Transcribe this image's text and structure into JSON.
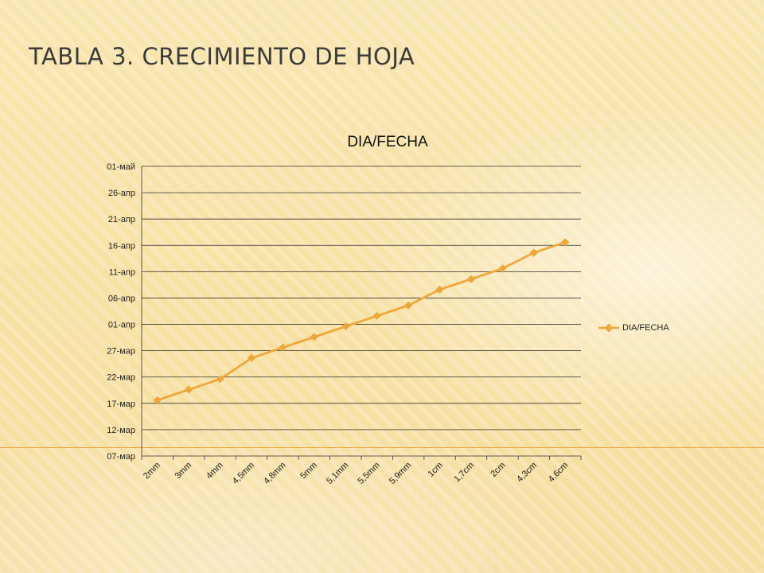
{
  "slide": {
    "title": "TABLA 3. CRECIMIENTO DE HOJA"
  },
  "colors": {
    "series": "#f0a73a",
    "grid": "#222222"
  },
  "chart_data": {
    "type": "line",
    "title": "DIA/FECHA",
    "xlabel": "",
    "ylabel": "",
    "categories": [
      "2mm",
      "3mm",
      "4mm",
      "4,5mm",
      "4,8mm",
      "5mm",
      "5,1mm",
      "5,5mm",
      "5,9mm",
      "1cm",
      "1,7cm",
      "2cm",
      "4,3cm",
      "4,6cm"
    ],
    "y_ticks": [
      "07-мар",
      "12-мар",
      "17-мар",
      "22-мар",
      "27-мар",
      "01-апр",
      "06-апр",
      "11-апр",
      "16-апр",
      "21-апр",
      "26-апр",
      "01-май"
    ],
    "series": [
      {
        "name": "DIA/FECHA",
        "values": [
          10.6,
          12.6,
          14.6,
          18.6,
          20.6,
          22.6,
          24.6,
          26.6,
          28.6,
          31.6,
          33.6,
          35.6,
          38.6,
          40.6
        ]
      }
    ],
    "y_range": [
      0,
      55
    ],
    "y_step": 5,
    "y_unit_note": "",
    "legend_position": "right",
    "grid": true
  }
}
